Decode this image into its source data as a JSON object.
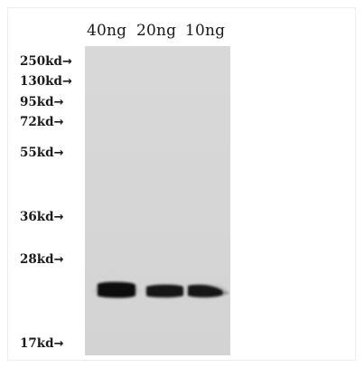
{
  "lanes": [
    "40ng",
    "20ng",
    "10ng"
  ],
  "markers": [
    {
      "label": "250kd",
      "arrow": "→"
    },
    {
      "label": "130kd",
      "arrow": "→"
    },
    {
      "label": "95kd",
      "arrow": "→"
    },
    {
      "label": "72kd",
      "arrow": "→"
    },
    {
      "label": "55kd",
      "arrow": "→"
    },
    {
      "label": "36kd",
      "arrow": "→"
    },
    {
      "label": "28kd",
      "arrow": "→"
    },
    {
      "label": "17kd",
      "arrow": "→"
    }
  ],
  "colors": {
    "membrane": "#d6d6d6",
    "band": "#111111",
    "text": "#1a1a1a"
  }
}
